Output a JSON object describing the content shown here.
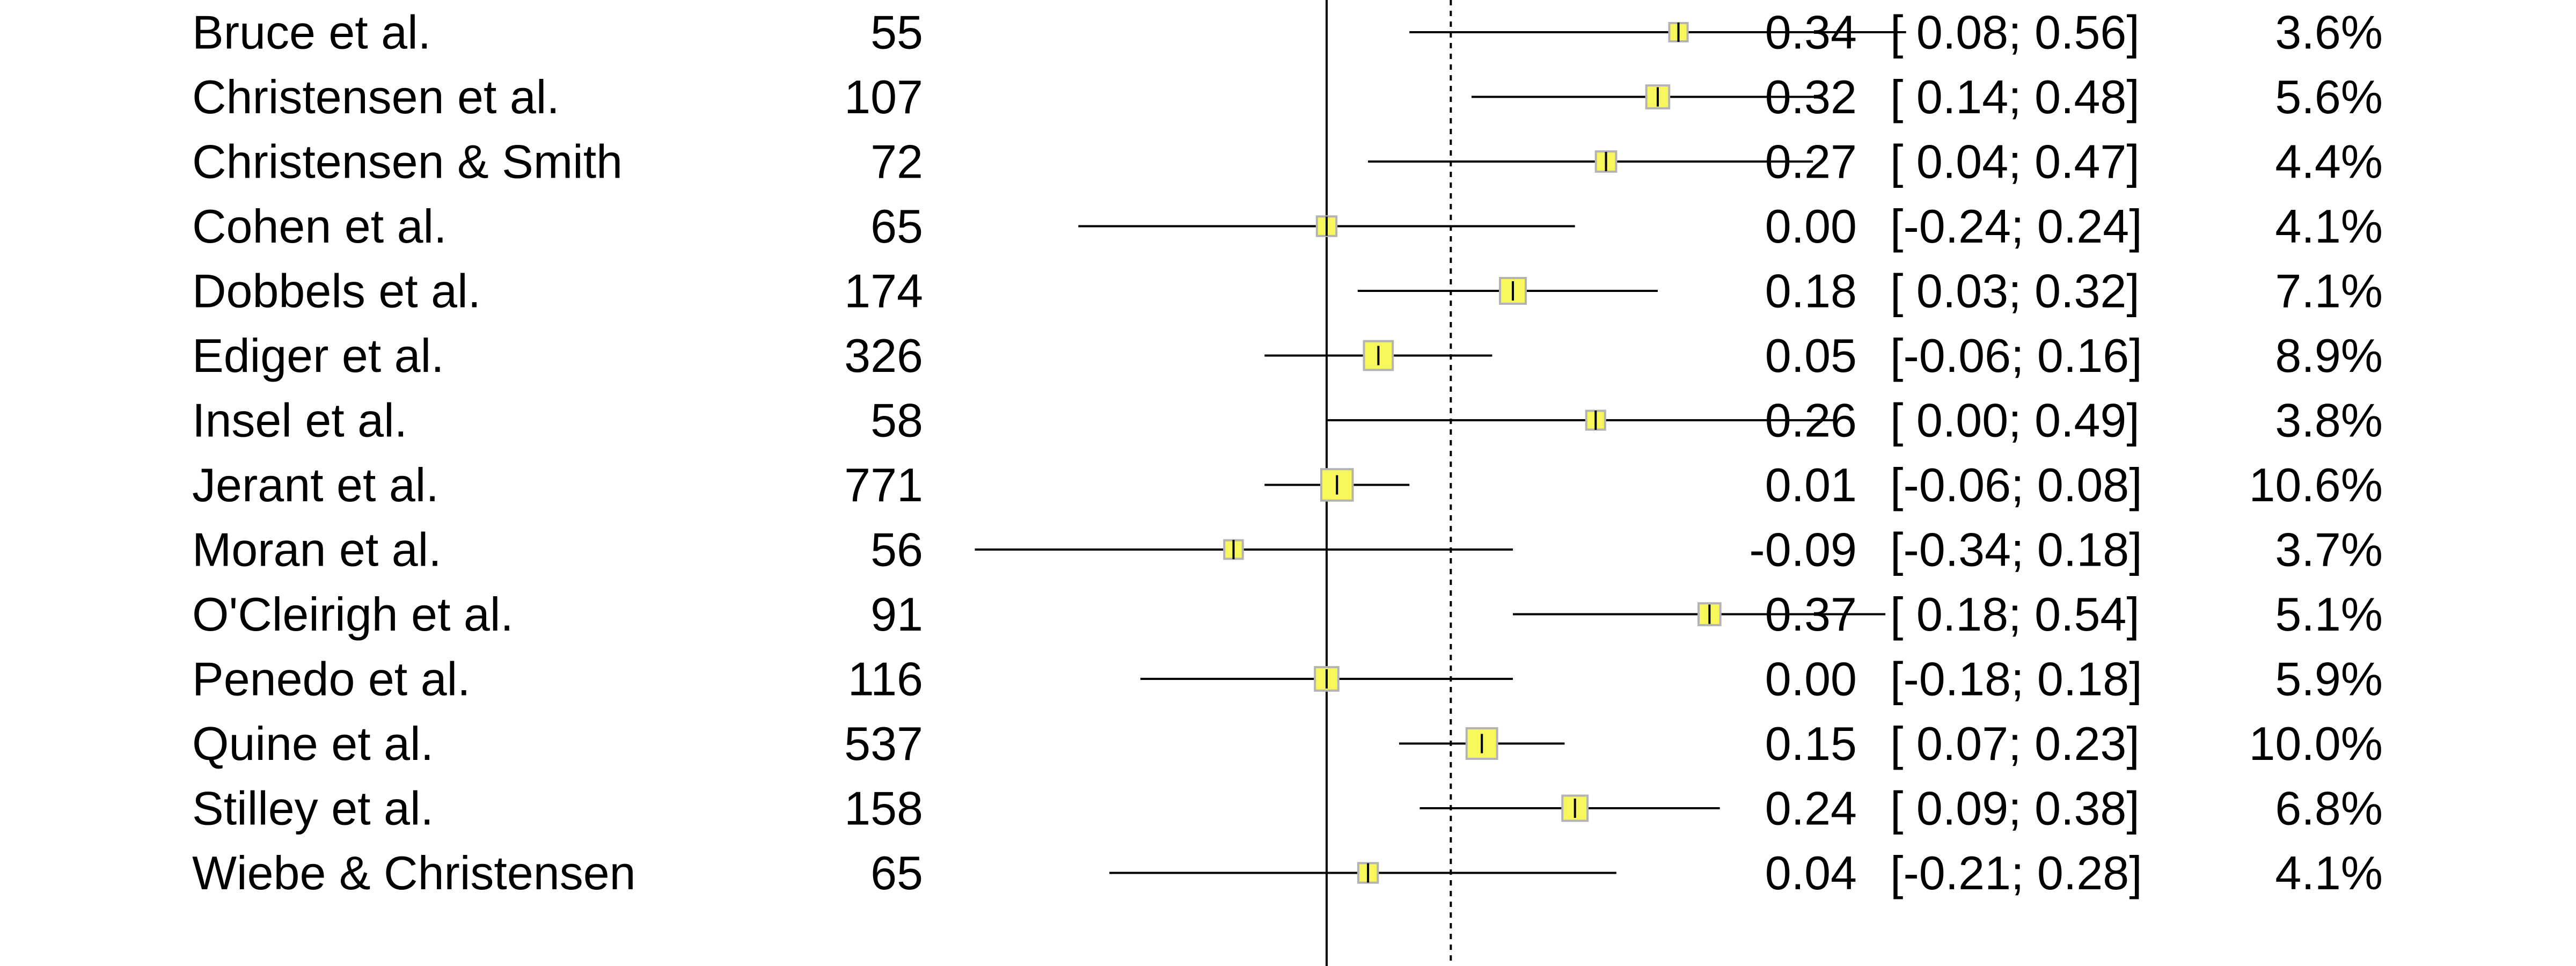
{
  "chart_data": {
    "type": "forest",
    "xlim": [
      -0.4,
      0.6
    ],
    "reference_line": 0,
    "pooled_estimate": 0.12,
    "marker_color": "#f7f75c",
    "marker_border_color": "#b3b3b3",
    "studies": [
      {
        "study": "Bruce et al.",
        "n": "55",
        "estimate": 0.34,
        "lower": 0.08,
        "upper": 0.56,
        "est_label": "0.34",
        "ci_label": "[ 0.08; 0.56]",
        "weight": 3.6,
        "weight_label": "3.6%"
      },
      {
        "study": "Christensen et al.",
        "n": "107",
        "estimate": 0.32,
        "lower": 0.14,
        "upper": 0.48,
        "est_label": "0.32",
        "ci_label": "[ 0.14; 0.48]",
        "weight": 5.6,
        "weight_label": "5.6%"
      },
      {
        "study": "Christensen & Smith",
        "n": "72",
        "estimate": 0.27,
        "lower": 0.04,
        "upper": 0.47,
        "est_label": "0.27",
        "ci_label": "[ 0.04; 0.47]",
        "weight": 4.4,
        "weight_label": "4.4%"
      },
      {
        "study": "Cohen et al.",
        "n": "65",
        "estimate": 0.0,
        "lower": -0.24,
        "upper": 0.24,
        "est_label": "0.00",
        "ci_label": "[-0.24; 0.24]",
        "weight": 4.1,
        "weight_label": "4.1%"
      },
      {
        "study": "Dobbels et al.",
        "n": "174",
        "estimate": 0.18,
        "lower": 0.03,
        "upper": 0.32,
        "est_label": "0.18",
        "ci_label": "[ 0.03; 0.32]",
        "weight": 7.1,
        "weight_label": "7.1%"
      },
      {
        "study": "Ediger et al.",
        "n": "326",
        "estimate": 0.05,
        "lower": -0.06,
        "upper": 0.16,
        "est_label": "0.05",
        "ci_label": "[-0.06; 0.16]",
        "weight": 8.9,
        "weight_label": "8.9%"
      },
      {
        "study": "Insel et al.",
        "n": "58",
        "estimate": 0.26,
        "lower": 0.0,
        "upper": 0.49,
        "est_label": "0.26",
        "ci_label": "[ 0.00; 0.49]",
        "weight": 3.8,
        "weight_label": "3.8%"
      },
      {
        "study": "Jerant et al.",
        "n": "771",
        "estimate": 0.01,
        "lower": -0.06,
        "upper": 0.08,
        "est_label": "0.01",
        "ci_label": "[-0.06; 0.08]",
        "weight": 10.6,
        "weight_label": "10.6%"
      },
      {
        "study": "Moran et al.",
        "n": "56",
        "estimate": -0.09,
        "lower": -0.34,
        "upper": 0.18,
        "est_label": "-0.09",
        "ci_label": "[-0.34; 0.18]",
        "weight": 3.7,
        "weight_label": "3.7%"
      },
      {
        "study": "O'Cleirigh et al.",
        "n": "91",
        "estimate": 0.37,
        "lower": 0.18,
        "upper": 0.54,
        "est_label": "0.37",
        "ci_label": "[ 0.18; 0.54]",
        "weight": 5.1,
        "weight_label": "5.1%"
      },
      {
        "study": "Penedo et al.",
        "n": "116",
        "estimate": 0.0,
        "lower": -0.18,
        "upper": 0.18,
        "est_label": "0.00",
        "ci_label": "[-0.18; 0.18]",
        "weight": 5.9,
        "weight_label": "5.9%"
      },
      {
        "study": "Quine et al.",
        "n": "537",
        "estimate": 0.15,
        "lower": 0.07,
        "upper": 0.23,
        "est_label": "0.15",
        "ci_label": "[ 0.07; 0.23]",
        "weight": 10.0,
        "weight_label": "10.0%"
      },
      {
        "study": "Stilley et al.",
        "n": "158",
        "estimate": 0.24,
        "lower": 0.09,
        "upper": 0.38,
        "est_label": "0.24",
        "ci_label": "[ 0.09; 0.38]",
        "weight": 6.8,
        "weight_label": "6.8%"
      },
      {
        "study": "Wiebe & Christensen",
        "n": "65",
        "estimate": 0.04,
        "lower": -0.21,
        "upper": 0.28,
        "est_label": "0.04",
        "ci_label": "[-0.21; 0.28]",
        "weight": 4.1,
        "weight_label": "4.1%"
      }
    ]
  }
}
